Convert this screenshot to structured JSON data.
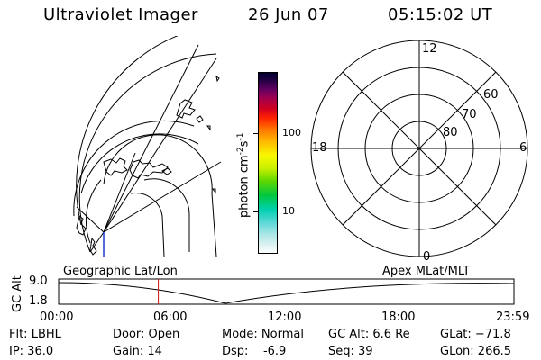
{
  "header": {
    "title": "Ultraviolet Imager",
    "date": "26 Jun 07",
    "time": "05:15:02 UT"
  },
  "colorbar": {
    "unit_label": "photon cm",
    "unit_sup1": "-2",
    "unit_s": "s",
    "unit_sup2": "-1",
    "tick_100": "100",
    "tick_10": "10"
  },
  "polar": {
    "mlt_top": "12",
    "mlt_left": "18",
    "mlt_right": "6",
    "mlt_bottom": "0",
    "lat_60": "60",
    "lat_70": "70",
    "lat_80": "80"
  },
  "panels": {
    "left_caption": "Geographic Lat/Lon",
    "right_caption": "Apex MLat/MLT"
  },
  "gc_plot": {
    "axis_label": "GC Alt",
    "y_top": "9.0",
    "y_bottom": "1.8",
    "x_ticks": [
      "00:00",
      "06:00",
      "12:00",
      "18:00",
      "23:59"
    ],
    "current_time_fraction": 0.219
  },
  "info": {
    "flt": "Flt: LBHL",
    "door": "Door: Open",
    "mode": "Mode: Normal",
    "gcalt": "GC Alt: 6.6 Re",
    "glat": "GLat: −71.8",
    "ip": "IP: 36.0",
    "gain": "Gain: 14",
    "dsp": "Dsp:    -6.9",
    "seq": "Seq: 39",
    "glon": "GLon: 266.5"
  }
}
